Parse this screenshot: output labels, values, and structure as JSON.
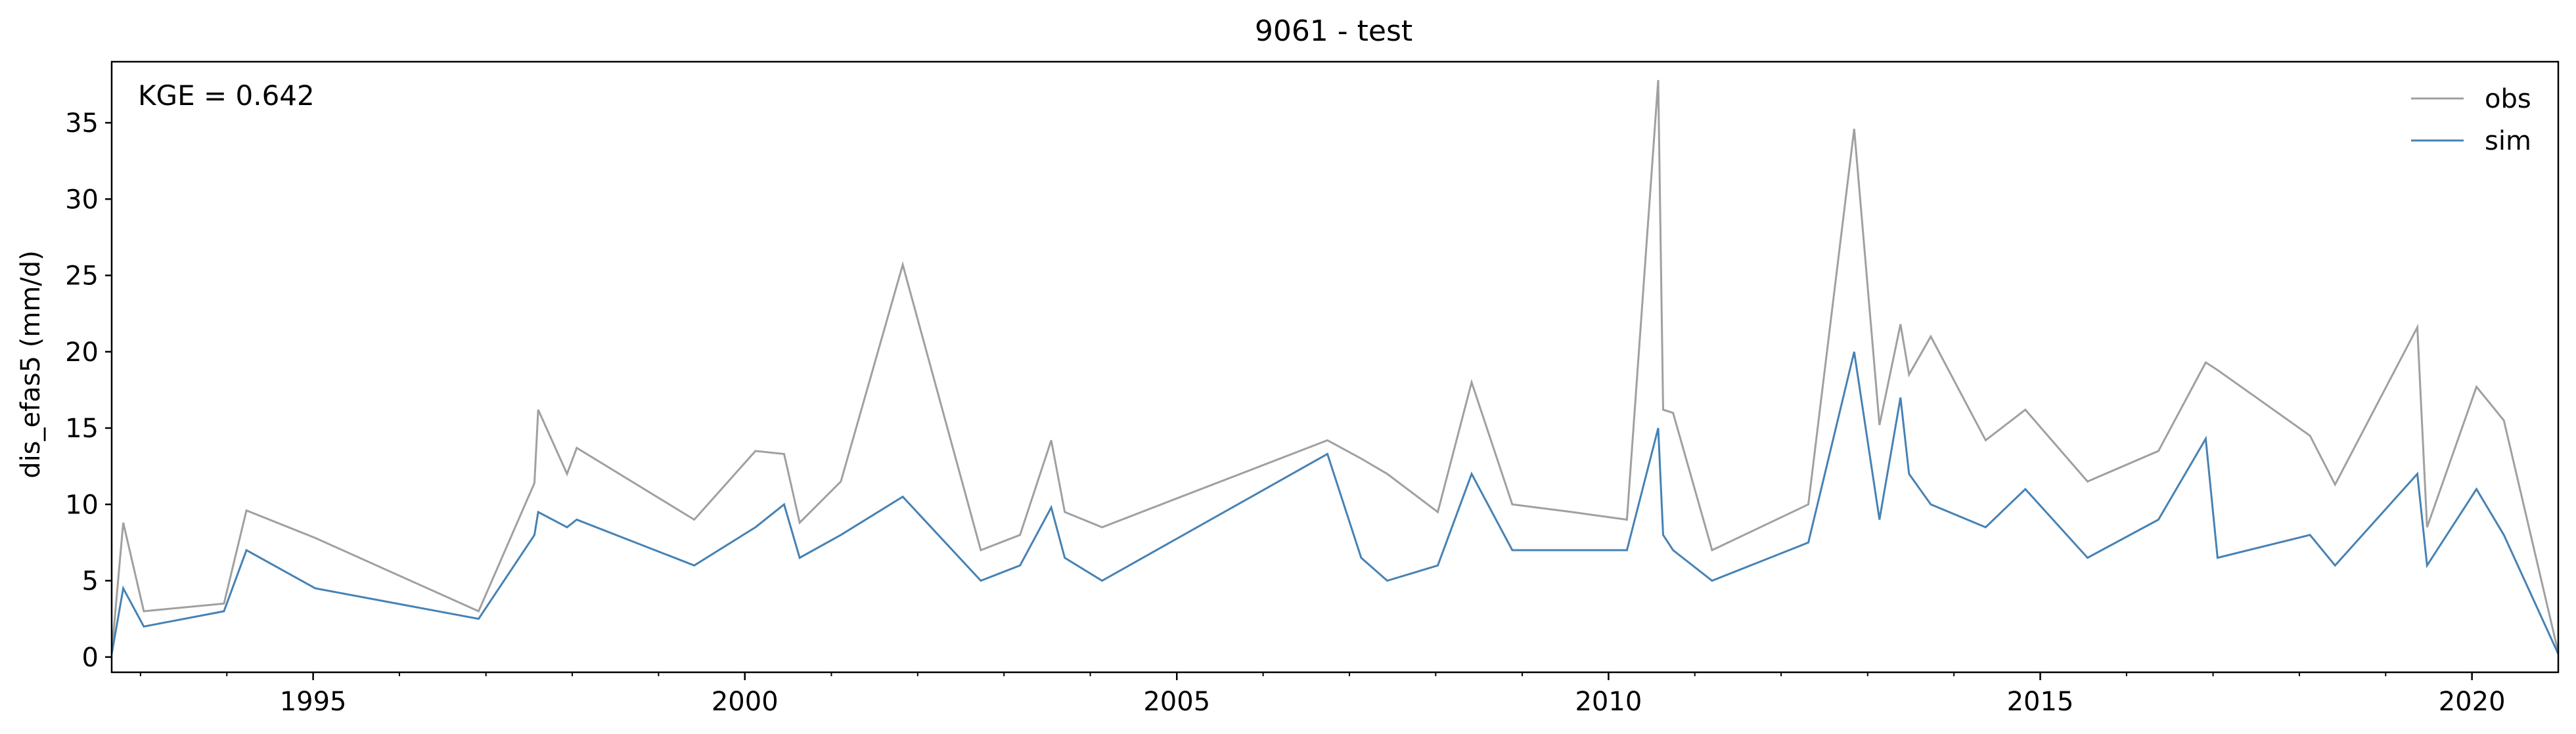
{
  "chart_data": {
    "type": "line",
    "title": "9061 - test",
    "ylabel": "dis_efas5 (mm/d)",
    "xlabel": "",
    "annotation": "KGE = 0.642",
    "xlim": [
      "1992-09-01",
      "2020-12-31"
    ],
    "ylim": [
      -1,
      39
    ],
    "yticks": [
      0,
      5,
      10,
      15,
      20,
      25,
      30,
      35
    ],
    "xticks": [
      {
        "date": "1995-01-01",
        "label": "1995"
      },
      {
        "date": "2000-01-01",
        "label": "2000"
      },
      {
        "date": "2005-01-01",
        "label": "2005"
      },
      {
        "date": "2010-01-01",
        "label": "2010"
      },
      {
        "date": "2015-01-01",
        "label": "2015"
      },
      {
        "date": "2020-01-01",
        "label": "2020"
      }
    ],
    "legend_position": "top-right",
    "grid": false,
    "series": [
      {
        "name": "obs",
        "color": "#a0a0a0",
        "x": [
          "1992-09-01",
          "1992-10-20",
          "1993-01-15",
          "1993-12-20",
          "1994-03-25",
          "1995-01-10",
          "1996-12-01",
          "1997-07-25",
          "1997-08-10",
          "1997-12-10",
          "1998-01-20",
          "1999-06-01",
          "2000-02-15",
          "2000-06-15",
          "2000-08-20",
          "2001-02-10",
          "2001-10-30",
          "2002-09-25",
          "2003-03-10",
          "2003-07-20",
          "2003-09-15",
          "2004-02-20",
          "2006-09-30",
          "2007-02-20",
          "2007-06-10",
          "2008-01-10",
          "2008-06-01",
          "2008-11-20",
          "2009-07-30",
          "2010-03-20",
          "2010-07-30",
          "2010-08-20",
          "2010-10-01",
          "2011-03-15",
          "2012-04-25",
          "2012-11-05",
          "2013-02-20",
          "2013-05-20",
          "2013-06-25",
          "2013-09-25",
          "2014-05-15",
          "2014-10-30",
          "2015-07-20",
          "2016-05-15",
          "2016-12-01",
          "2017-01-20",
          "2018-02-15",
          "2018-06-01",
          "2019-05-15",
          "2019-06-25",
          "2020-01-20",
          "2020-05-15",
          "2020-12-31"
        ],
        "y": [
          0.3,
          8.8,
          3.0,
          3.5,
          9.6,
          7.8,
          3.0,
          11.4,
          16.2,
          12.0,
          13.7,
          9.0,
          13.5,
          13.3,
          8.8,
          11.5,
          25.7,
          7.0,
          8.0,
          14.2,
          9.5,
          8.5,
          14.2,
          13.0,
          12.0,
          9.5,
          18.0,
          10.0,
          9.5,
          9.0,
          37.8,
          16.2,
          16.0,
          7.0,
          10.0,
          34.6,
          15.2,
          21.8,
          18.5,
          21.0,
          14.2,
          16.2,
          11.5,
          13.5,
          19.3,
          18.8,
          14.5,
          11.3,
          21.6,
          8.5,
          17.7,
          15.5,
          0.3
        ]
      },
      {
        "name": "sim",
        "color": "#4682b4",
        "x": [
          "1992-09-01",
          "1992-10-20",
          "1993-01-15",
          "1993-12-20",
          "1994-03-25",
          "1995-01-10",
          "1996-12-01",
          "1997-07-25",
          "1997-08-10",
          "1997-12-10",
          "1998-01-20",
          "1999-06-01",
          "2000-02-15",
          "2000-06-15",
          "2000-08-20",
          "2001-02-10",
          "2001-10-30",
          "2002-09-25",
          "2003-03-10",
          "2003-07-20",
          "2003-09-15",
          "2004-02-20",
          "2006-09-30",
          "2007-02-20",
          "2007-06-10",
          "2008-01-10",
          "2008-06-01",
          "2008-11-20",
          "2009-07-30",
          "2010-03-20",
          "2010-07-30",
          "2010-08-20",
          "2010-10-01",
          "2011-03-15",
          "2012-04-25",
          "2012-11-05",
          "2013-02-20",
          "2013-05-20",
          "2013-06-25",
          "2013-09-25",
          "2014-05-15",
          "2014-10-30",
          "2015-07-20",
          "2016-05-15",
          "2016-12-01",
          "2017-01-20",
          "2018-02-15",
          "2018-06-01",
          "2019-05-15",
          "2019-06-25",
          "2020-01-20",
          "2020-05-15",
          "2020-12-31"
        ],
        "y": [
          0.2,
          4.5,
          2.0,
          3.0,
          7.0,
          4.5,
          2.5,
          8.0,
          9.5,
          8.5,
          9.0,
          6.0,
          8.5,
          10.0,
          6.5,
          8.0,
          10.5,
          5.0,
          6.0,
          9.8,
          6.5,
          5.0,
          13.3,
          6.5,
          5.0,
          6.0,
          12.0,
          7.0,
          7.0,
          7.0,
          15.0,
          8.0,
          7.0,
          5.0,
          7.5,
          20.0,
          9.0,
          17.0,
          12.0,
          10.0,
          8.5,
          11.0,
          6.5,
          9.0,
          14.3,
          6.5,
          8.0,
          6.0,
          12.0,
          6.0,
          11.0,
          8.0,
          0.2
        ]
      }
    ]
  }
}
